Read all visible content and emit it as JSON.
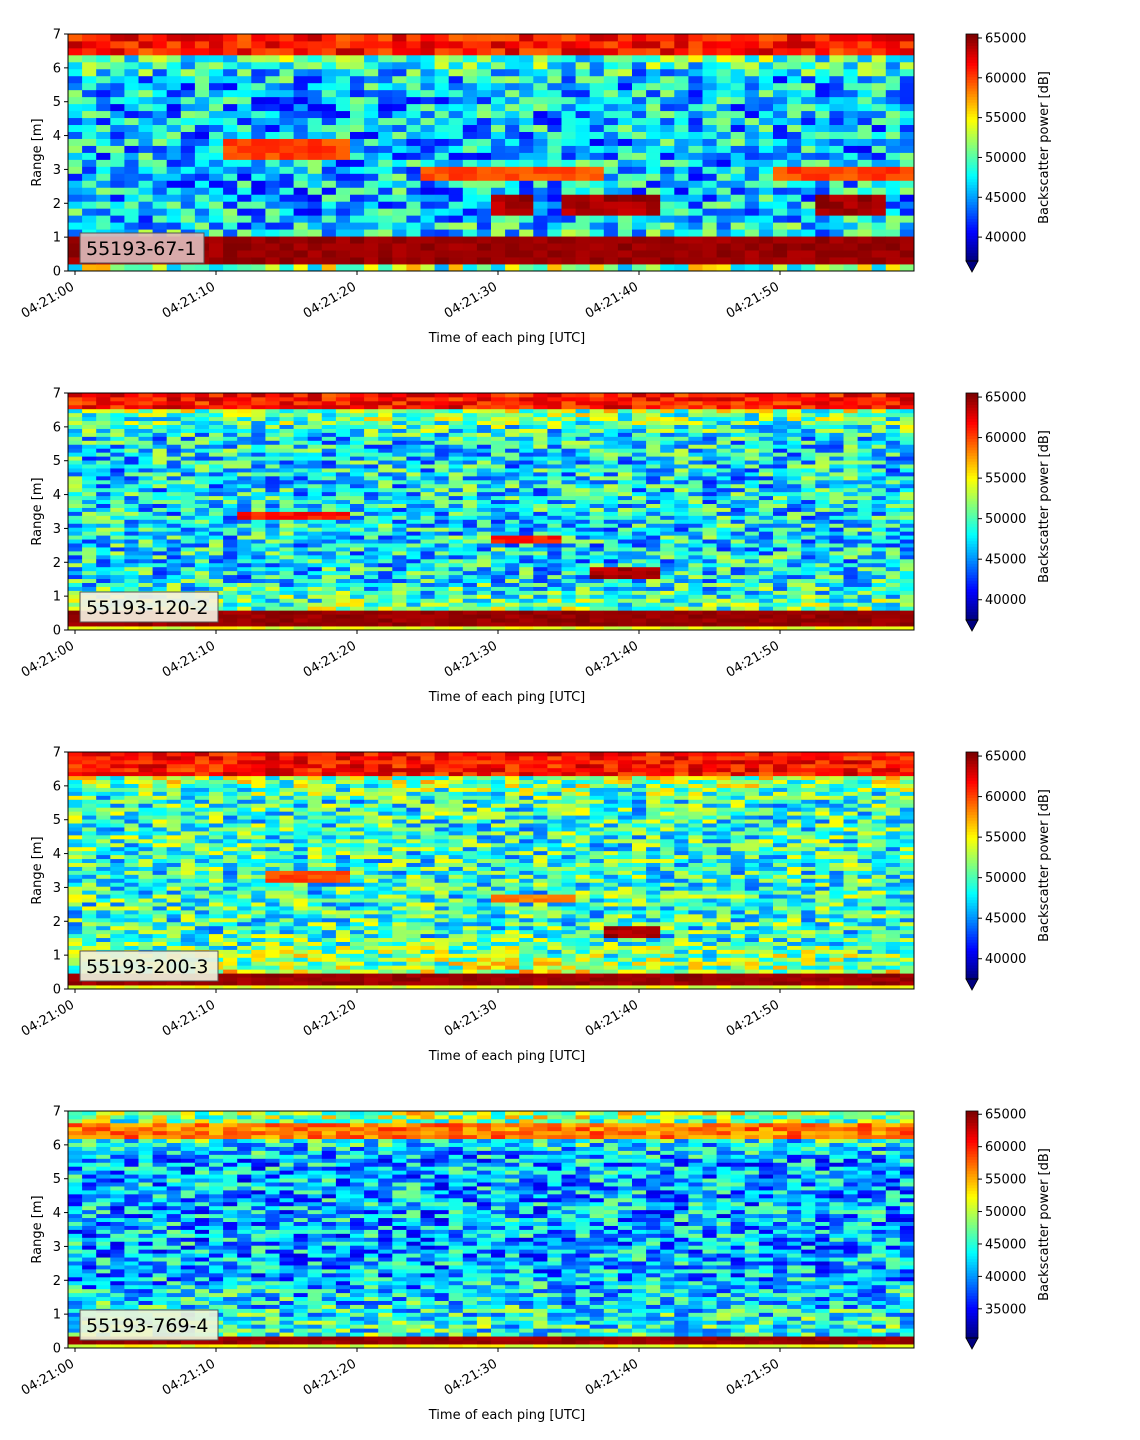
{
  "chart_data": [
    {
      "type": "heatmap",
      "label": "55193-67-1",
      "xlabel": "Time of each ping [UTC]",
      "ylabel": "Range [m]",
      "ylim": [
        0,
        7
      ],
      "yticks": [
        "0",
        "1",
        "2",
        "3",
        "4",
        "5",
        "6",
        "7"
      ],
      "xticks": [
        "04:21:00",
        "04:21:10",
        "04:21:20",
        "04:21:30",
        "04:21:40",
        "04:21:50"
      ],
      "colorbar": {
        "label": "Backscatter power [dB]",
        "range": [
          37000,
          65500
        ],
        "ticks": [
          "40000",
          "45000",
          "50000",
          "55000",
          "60000",
          "65000"
        ],
        "extend": "min"
      },
      "features": [
        {
          "kind": "bottom_band",
          "range_m": [
            0.2,
            1.0
          ],
          "level": 1.0
        },
        {
          "kind": "surface_band",
          "range_m": [
            6.4,
            7.0
          ],
          "level": 0.95
        },
        {
          "kind": "streak",
          "time_s": [
            11,
            19
          ],
          "range_m": 3.6,
          "level": 0.85
        },
        {
          "kind": "streak",
          "time_s": [
            25,
            37
          ],
          "range_m": 2.9,
          "level": 0.85
        },
        {
          "kind": "streak",
          "time_s": [
            50,
            59
          ],
          "range_m": 2.9,
          "level": 0.85
        },
        {
          "kind": "streak",
          "time_s": [
            30,
            32
          ],
          "range_m": 2.0,
          "level": 1.0
        },
        {
          "kind": "streak",
          "time_s": [
            35,
            41
          ],
          "range_m": 1.9,
          "level": 1.0
        },
        {
          "kind": "streak",
          "time_s": [
            53,
            57
          ],
          "range_m": 2.0,
          "level": 1.0
        }
      ]
    },
    {
      "type": "heatmap",
      "label": "55193-120-2",
      "xlabel": "Time of each ping [UTC]",
      "ylabel": "Range [m]",
      "ylim": [
        0,
        7
      ],
      "yticks": [
        "0",
        "1",
        "2",
        "3",
        "4",
        "5",
        "6",
        "7"
      ],
      "xticks": [
        "04:21:00",
        "04:21:10",
        "04:21:20",
        "04:21:30",
        "04:21:40",
        "04:21:50"
      ],
      "colorbar": {
        "label": "Backscatter power [dB]",
        "range": [
          37500,
          65500
        ],
        "ticks": [
          "40000",
          "45000",
          "50000",
          "55000",
          "60000",
          "65000"
        ],
        "extend": "min"
      },
      "features": [
        {
          "kind": "bottom_band",
          "range_m": [
            0.1,
            0.6
          ],
          "level": 1.0
        },
        {
          "kind": "surface_band",
          "range_m": [
            6.5,
            7.0
          ],
          "level": 0.95
        },
        {
          "kind": "streak",
          "time_s": [
            12,
            19
          ],
          "range_m": 3.4,
          "level": 0.9
        },
        {
          "kind": "streak",
          "time_s": [
            30,
            34
          ],
          "range_m": 2.7,
          "level": 0.9
        },
        {
          "kind": "streak",
          "time_s": [
            37,
            41
          ],
          "range_m": 1.7,
          "level": 1.0
        }
      ]
    },
    {
      "type": "heatmap",
      "label": "55193-200-3",
      "xlabel": "Time of each ping [UTC]",
      "ylabel": "Range [m]",
      "ylim": [
        0,
        7
      ],
      "yticks": [
        "0",
        "1",
        "2",
        "3",
        "4",
        "5",
        "6",
        "7"
      ],
      "xticks": [
        "04:21:00",
        "04:21:10",
        "04:21:20",
        "04:21:30",
        "04:21:40",
        "04:21:50"
      ],
      "colorbar": {
        "label": "Backscatter power [dB]",
        "range": [
          37500,
          65500
        ],
        "ticks": [
          "40000",
          "45000",
          "50000",
          "55000",
          "60000",
          "65000"
        ],
        "extend": "min"
      },
      "features": [
        {
          "kind": "bottom_band",
          "range_m": [
            0.1,
            0.5
          ],
          "level": 1.0
        },
        {
          "kind": "surface_band",
          "range_m": [
            6.3,
            7.0
          ],
          "level": 0.95
        },
        {
          "kind": "streak",
          "time_s": [
            14,
            19
          ],
          "range_m": 3.3,
          "level": 0.85
        },
        {
          "kind": "streak",
          "time_s": [
            30,
            35
          ],
          "range_m": 2.7,
          "level": 0.8
        },
        {
          "kind": "streak",
          "time_s": [
            38,
            41
          ],
          "range_m": 1.7,
          "level": 1.0
        }
      ]
    },
    {
      "type": "heatmap",
      "label": "55193-769-4",
      "xlabel": "Time of each ping [UTC]",
      "ylabel": "Range [m]",
      "ylim": [
        0,
        7
      ],
      "yticks": [
        "0",
        "1",
        "2",
        "3",
        "4",
        "5",
        "6",
        "7"
      ],
      "xticks": [
        "04:21:00",
        "04:21:10",
        "04:21:20",
        "04:21:30",
        "04:21:40",
        "04:21:50"
      ],
      "colorbar": {
        "label": "Backscatter power [dB]",
        "range": [
          30500,
          65500
        ],
        "ticks": [
          "35000",
          "40000",
          "45000",
          "50000",
          "55000",
          "60000",
          "65000"
        ],
        "extend": "min"
      },
      "features": [
        {
          "kind": "bottom_band",
          "range_m": [
            0.1,
            0.4
          ],
          "level": 1.0
        },
        {
          "kind": "surface_band",
          "range_m": [
            6.2,
            6.6
          ],
          "level": 0.85
        }
      ]
    }
  ],
  "colormap": "jet",
  "time_span_s": 60
}
